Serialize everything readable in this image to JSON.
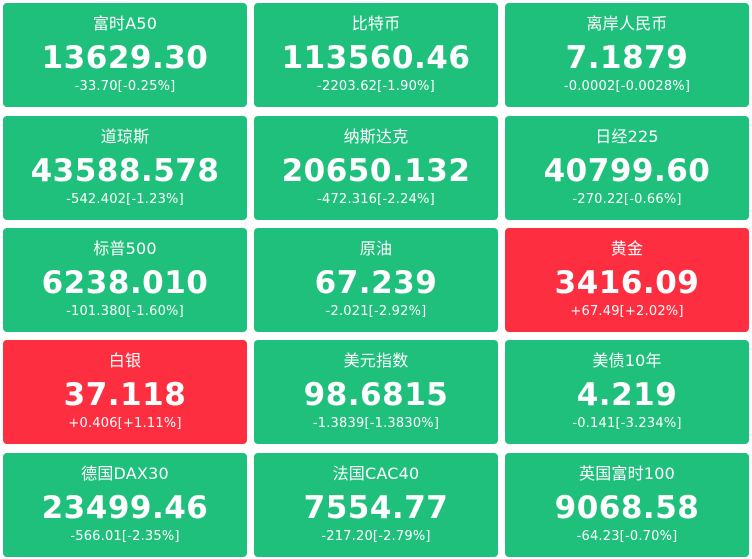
{
  "colors": {
    "down": "#1fc07c",
    "up": "#fd2e3f",
    "text": "#ffffff"
  },
  "quotes": [
    {
      "name": "富时A50",
      "price": "13629.30",
      "change": "-33.70[-0.25%]",
      "direction": "down"
    },
    {
      "name": "比特币",
      "price": "113560.46",
      "change": "-2203.62[-1.90%]",
      "direction": "down"
    },
    {
      "name": "离岸人民币",
      "price": "7.1879",
      "change": "-0.0002[-0.0028%]",
      "direction": "down"
    },
    {
      "name": "道琼斯",
      "price": "43588.578",
      "change": "-542.402[-1.23%]",
      "direction": "down"
    },
    {
      "name": "纳斯达克",
      "price": "20650.132",
      "change": "-472.316[-2.24%]",
      "direction": "down"
    },
    {
      "name": "日经225",
      "price": "40799.60",
      "change": "-270.22[-0.66%]",
      "direction": "down"
    },
    {
      "name": "标普500",
      "price": "6238.010",
      "change": "-101.380[-1.60%]",
      "direction": "down"
    },
    {
      "name": "原油",
      "price": "67.239",
      "change": "-2.021[-2.92%]",
      "direction": "down"
    },
    {
      "name": "黄金",
      "price": "3416.09",
      "change": "+67.49[+2.02%]",
      "direction": "up"
    },
    {
      "name": "白银",
      "price": "37.118",
      "change": "+0.406[+1.11%]",
      "direction": "up"
    },
    {
      "name": "美元指数",
      "price": "98.6815",
      "change": "-1.3839[-1.3830%]",
      "direction": "down"
    },
    {
      "name": "美债10年",
      "price": "4.219",
      "change": "-0.141[-3.234%]",
      "direction": "down"
    },
    {
      "name": "德国DAX30",
      "price": "23499.46",
      "change": "-566.01[-2.35%]",
      "direction": "down"
    },
    {
      "name": "法国CAC40",
      "price": "7554.77",
      "change": "-217.20[-2.79%]",
      "direction": "down"
    },
    {
      "name": "英国富时100",
      "price": "9068.58",
      "change": "-64.23[-0.70%]",
      "direction": "down"
    }
  ]
}
